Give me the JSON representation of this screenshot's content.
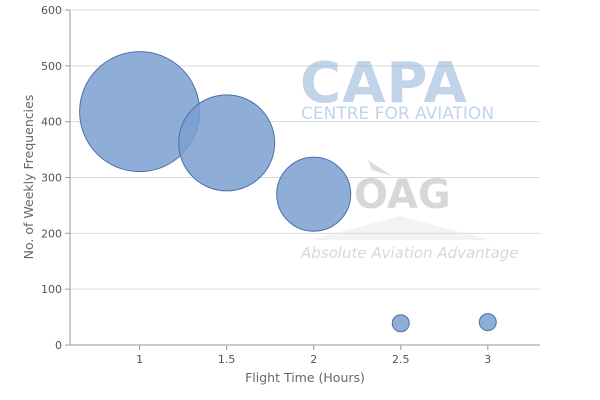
{
  "chart_data": {
    "type": "bubble",
    "xlabel": "Flight Time (Hours)",
    "ylabel": "No. of Weekly Frequencies",
    "xlim": [
      0.6,
      3.3
    ],
    "ylim": [
      0,
      600
    ],
    "x_ticks": [
      "1",
      "1.5",
      "2",
      "2.5",
      "3"
    ],
    "y_ticks": [
      "0",
      "100",
      "200",
      "300",
      "400",
      "500",
      "600"
    ],
    "grid": "horizontal",
    "points": [
      {
        "x": 1.0,
        "y": 418,
        "size": 100
      },
      {
        "x": 1.5,
        "y": 362,
        "size": 64
      },
      {
        "x": 2.0,
        "y": 270,
        "size": 38
      },
      {
        "x": 2.5,
        "y": 39,
        "size": 2
      },
      {
        "x": 3.0,
        "y": 41,
        "size": 2
      }
    ],
    "colors": {
      "bubble_fill": "#7a9fd0",
      "bubble_stroke": "#4a70aa"
    }
  },
  "watermark": {
    "capa_logo": "CAPA",
    "capa_subtitle": "CENTRE FOR AVIATION",
    "oag_logo": "OAG",
    "oag_tagline": "Absolute Aviation Advantage"
  }
}
